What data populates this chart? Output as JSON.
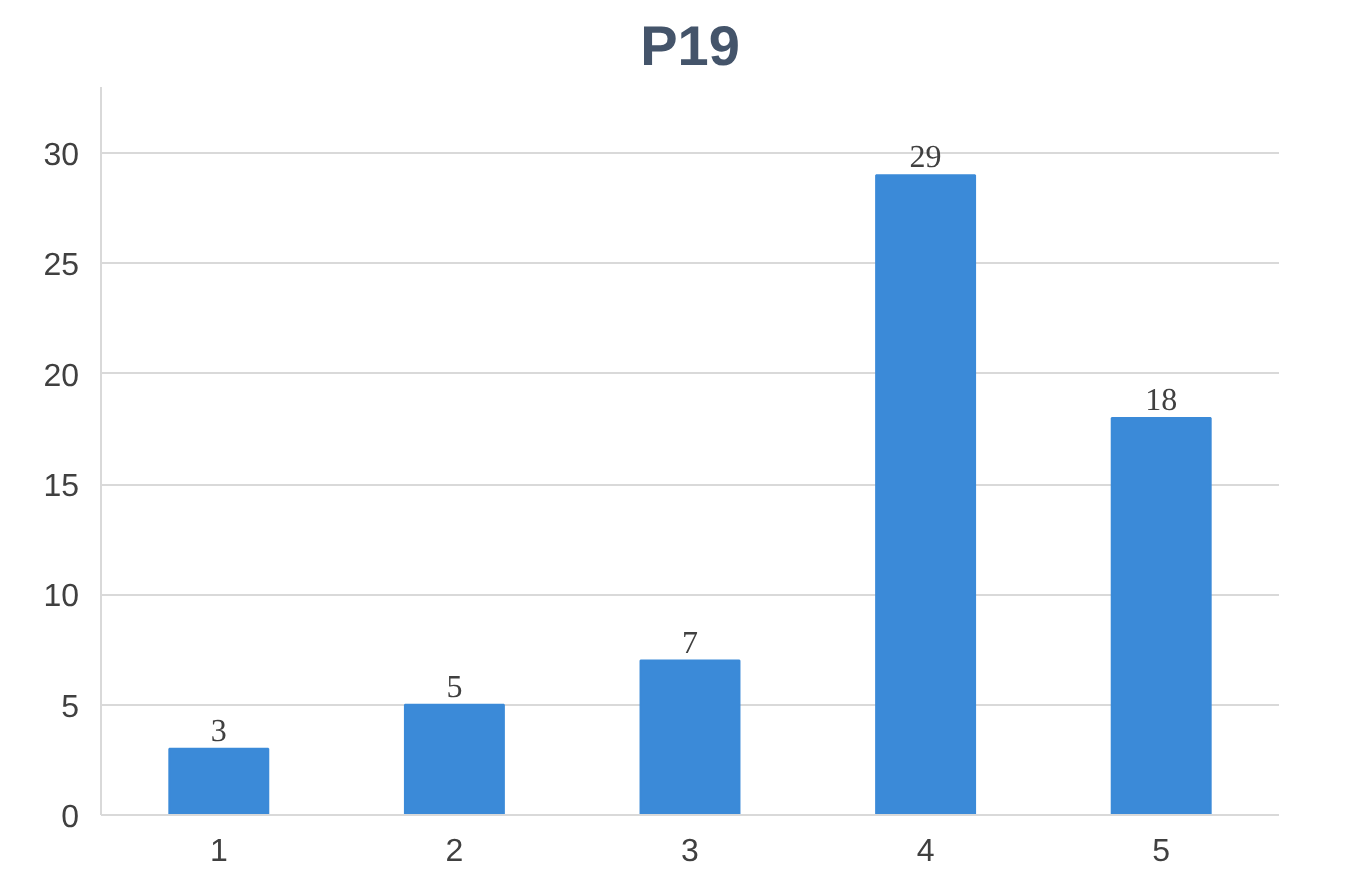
{
  "chart_data": {
    "type": "bar",
    "title": "P19",
    "categories": [
      "1",
      "2",
      "3",
      "4",
      "5"
    ],
    "values": [
      3,
      5,
      7,
      29,
      18
    ],
    "color": "#3b8ad8",
    "ylim": [
      0,
      33
    ],
    "yticks": [
      0,
      5,
      10,
      15,
      20,
      25,
      30
    ],
    "grid": "y",
    "data_labels": true
  }
}
